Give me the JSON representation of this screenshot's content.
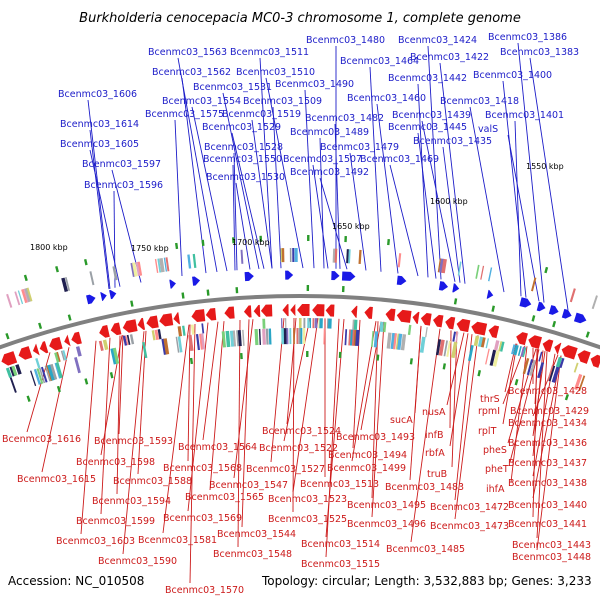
{
  "title": "Burkholderia cenocepacia MC0-3 chromosome 1, complete genome",
  "accession": "Accession: NC_010508",
  "topology": "Topology: circular; Length: 3,532,883 bp; Genes: 3,233",
  "colors": {
    "forward": "#1a1ae6",
    "reverse": "#e61a1a",
    "label_forward": "#1c1cc8",
    "label_reverse": "#cc1a1a",
    "backbone": "#808080",
    "tick": "#2a9a2a"
  },
  "scale_labels": [
    "1800 kbp",
    "1750 kbp",
    "1700 kbp",
    "1650 kbp",
    "1600 kbp",
    "1550 kbp"
  ],
  "top_labels": [
    "Bcenmc03_1480",
    "Bcenmc03_1424",
    "Bcenmc03_1386",
    "Bcenmc03_1563",
    "Bcenmc03_1511",
    "Bcenmc03_1422",
    "Bcenmc03_1383",
    "Bcenmc03_1464",
    "Bcenmc03_1562",
    "Bcenmc03_1510",
    "Bcenmc03_1442",
    "Bcenmc03_1400",
    "Bcenmc03_1531",
    "Bcenmc03_1490",
    "Bcenmc03_1606",
    "Bcenmc03_1554",
    "Bcenmc03_1509",
    "Bcenmc03_1460",
    "Bcenmc03_1418",
    "Bcenmc03_1575",
    "Bcenmc03_1519",
    "Bcenmc03_1439",
    "Bcenmc03_1401",
    "Bcenmc03_1614",
    "Bcenmc03_1529",
    "Bcenmc03_1482",
    "Bcenmc03_1445",
    "valS",
    "Bcenmc03_1489",
    "Bcenmc03_1435",
    "Bcenmc03_1605",
    "Bcenmc03_1528",
    "Bcenmc03_1479",
    "Bcenmc03_1597",
    "Bcenmc03_1550",
    "Bcenmc03_1507",
    "Bcenmc03_1469",
    "Bcenmc03_1596",
    "Bcenmc03_1530",
    "Bcenmc03_1492"
  ],
  "bottom_labels": [
    "Bcenmc03_1428",
    "thrS",
    "rpmI",
    "Bcenmc03_1429",
    "rplT",
    "Bcenmc03_1434",
    "sucA",
    "nusA",
    "pheS",
    "Bcenmc03_1524",
    "Bcenmc03_1493",
    "infB",
    "Bcenmc03_1436",
    "Bcenmc03_1616",
    "Bcenmc03_1593",
    "Bcenmc03_1564",
    "Bcenmc03_1522",
    "Bcenmc03_1494",
    "rbfA",
    "pheT",
    "Bcenmc03_1437",
    "Bcenmc03_1598",
    "Bcenmc03_1568",
    "Bcenmc03_1527",
    "Bcenmc03_1499",
    "truB",
    "ihfA",
    "Bcenmc03_1615",
    "Bcenmc03_1588",
    "Bcenmc03_1547",
    "Bcenmc03_1513",
    "Bcenmc03_1483",
    "Bcenmc03_1438",
    "Bcenmc03_1594",
    "Bcenmc03_1565",
    "Bcenmc03_1523",
    "Bcenmc03_1495",
    "Bcenmc03_1472",
    "Bcenmc03_1440",
    "Bcenmc03_1599",
    "Bcenmc03_1569",
    "Bcenmc03_1525",
    "Bcenmc03_1496",
    "Bcenmc03_1473",
    "Bcenmc03_1441",
    "Bcenmc03_1603",
    "Bcenmc03_1581",
    "Bcenmc03_1544",
    "Bcenmc03_1514",
    "Bcenmc03_1485",
    "Bcenmc03_1443",
    "Bcenmc03_1590",
    "Bcenmc03_1548",
    "Bcenmc03_1515",
    "Bcenmc03_1448",
    "Bcenmc03_1570"
  ]
}
